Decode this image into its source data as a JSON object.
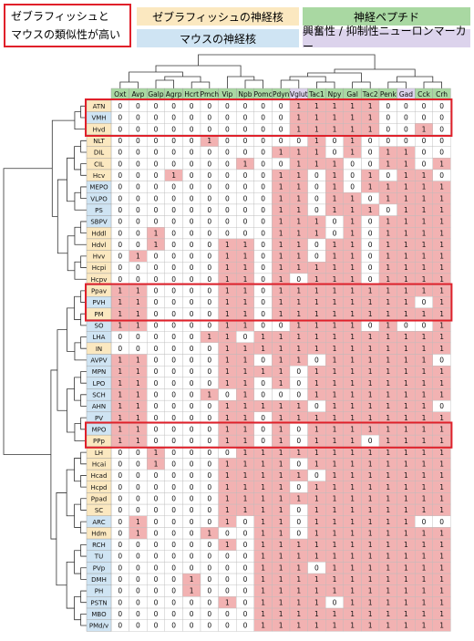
{
  "legend": {
    "similarity_line1": "ゼブラフィッシュと",
    "similarity_line2": "マウスの類似性が高い",
    "zebrafish_nuclei": "ゼブラフィッシュの神経核",
    "mouse_nuclei": "マウスの神経核",
    "neuropeptides": "神経ペプチド",
    "excitatory_inhibitory": "興奮性 / 抑制性ニューロンマーカー"
  },
  "colors": {
    "zebrafish": "#fbe8c0",
    "mouse": "#cfe4f3",
    "neuropeptide": "#a9d8a2",
    "ei_marker": "#dcd3ec",
    "positive_cell": "#f2b2b2",
    "highlight": "#e0202a"
  },
  "columns": [
    {
      "name": "Oxt",
      "group": "neuropeptide"
    },
    {
      "name": "Avp",
      "group": "neuropeptide"
    },
    {
      "name": "Galp",
      "group": "neuropeptide"
    },
    {
      "name": "Agrp",
      "group": "neuropeptide"
    },
    {
      "name": "Hcrt",
      "group": "neuropeptide"
    },
    {
      "name": "Pmch",
      "group": "neuropeptide"
    },
    {
      "name": "Vip",
      "group": "neuropeptide"
    },
    {
      "name": "Npb",
      "group": "neuropeptide"
    },
    {
      "name": "Pomc",
      "group": "neuropeptide"
    },
    {
      "name": "Pdyn",
      "group": "neuropeptide"
    },
    {
      "name": "Vglut",
      "group": "ei_marker"
    },
    {
      "name": "Tac1",
      "group": "neuropeptide"
    },
    {
      "name": "Npy",
      "group": "neuropeptide"
    },
    {
      "name": "Gal",
      "group": "neuropeptide"
    },
    {
      "name": "Tac2",
      "group": "neuropeptide"
    },
    {
      "name": "Penk",
      "group": "neuropeptide"
    },
    {
      "name": "Gad",
      "group": "ei_marker"
    },
    {
      "name": "Cck",
      "group": "neuropeptide"
    },
    {
      "name": "Crh",
      "group": "neuropeptide"
    }
  ],
  "rows": [
    {
      "name": "ATN",
      "species": "zebrafish",
      "v": "0000000000111110000"
    },
    {
      "name": "VMH",
      "species": "mouse",
      "v": "0000000000111110000"
    },
    {
      "name": "Hvd",
      "species": "zebrafish",
      "v": "0000000000111110010"
    },
    {
      "name": "NLT",
      "species": "zebrafish",
      "v": "0000010000010100000"
    },
    {
      "name": "DIL",
      "species": "zebrafish",
      "v": "0000000001110101100"
    },
    {
      "name": "CIL",
      "species": "zebrafish",
      "v": "0000000100111001101"
    },
    {
      "name": "Hcv",
      "species": "zebrafish",
      "v": "0001000001101010110"
    },
    {
      "name": "MEPO",
      "species": "mouse",
      "v": "0000000001101011111"
    },
    {
      "name": "VLPO",
      "species": "mouse",
      "v": "0000000001101101111"
    },
    {
      "name": "PS",
      "species": "mouse",
      "v": "0000000001101110111"
    },
    {
      "name": "SBPV",
      "species": "mouse",
      "v": "0000000001110101111"
    },
    {
      "name": "Hddl",
      "species": "zebrafish",
      "v": "0010000001110101111"
    },
    {
      "name": "Hdvl",
      "species": "zebrafish",
      "v": "0010001101101101111"
    },
    {
      "name": "Hvv",
      "species": "zebrafish",
      "v": "0100001101101101111"
    },
    {
      "name": "Hcpi",
      "species": "zebrafish",
      "v": "0000001101111101111"
    },
    {
      "name": "Hcpv",
      "species": "zebrafish",
      "v": "0000001101011101111"
    },
    {
      "name": "Ppav",
      "species": "zebrafish",
      "v": "1100001101111111111"
    },
    {
      "name": "PVH",
      "species": "mouse",
      "v": "1100001101111111101"
    },
    {
      "name": "PM",
      "species": "zebrafish",
      "v": "1100001101111111111"
    },
    {
      "name": "SO",
      "species": "mouse",
      "v": "1100001100111101001"
    },
    {
      "name": "LHA",
      "species": "mouse",
      "v": "0000011011111111111"
    },
    {
      "name": "IN",
      "species": "zebrafish",
      "v": "0000001111111111111"
    },
    {
      "name": "AVPV",
      "species": "mouse",
      "v": "1100001101101111110"
    },
    {
      "name": "MPN",
      "species": "mouse",
      "v": "1100001111011111111"
    },
    {
      "name": "LPO",
      "species": "mouse",
      "v": "1100001101011111111"
    },
    {
      "name": "SCH",
      "species": "mouse",
      "v": "1100010100011111111"
    },
    {
      "name": "AHN",
      "species": "mouse",
      "v": "1100001111101111110"
    },
    {
      "name": "PV",
      "species": "mouse",
      "v": "1100001101111111111"
    },
    {
      "name": "MPO",
      "species": "mouse",
      "v": "1100001101011111111"
    },
    {
      "name": "PPp",
      "species": "zebrafish",
      "v": "1100001101011101111"
    },
    {
      "name": "LH",
      "species": "zebrafish",
      "v": "0010000111111111111"
    },
    {
      "name": "Hcai",
      "species": "zebrafish",
      "v": "0010001111011111111"
    },
    {
      "name": "Hcad",
      "species": "zebrafish",
      "v": "0000001111101111111"
    },
    {
      "name": "Hcpd",
      "species": "zebrafish",
      "v": "0000001111011111111"
    },
    {
      "name": "Ppad",
      "species": "zebrafish",
      "v": "0000001111111111111"
    },
    {
      "name": "SC",
      "species": "zebrafish",
      "v": "0000001111011111111"
    },
    {
      "name": "ARC",
      "species": "mouse",
      "v": "0100001011011111100"
    },
    {
      "name": "Hdm",
      "species": "zebrafish",
      "v": "0100010011011111111"
    },
    {
      "name": "RCH",
      "species": "mouse",
      "v": "0000001011111111111"
    },
    {
      "name": "TU",
      "species": "mouse",
      "v": "0000000011111111111"
    },
    {
      "name": "PVp",
      "species": "mouse",
      "v": "0000000011101111111"
    },
    {
      "name": "DMH",
      "species": "mouse",
      "v": "0000100011111111111"
    },
    {
      "name": "PH",
      "species": "mouse",
      "v": "0000100011111111111"
    },
    {
      "name": "PSTN",
      "species": "mouse",
      "v": "0000001011110111111"
    },
    {
      "name": "MBO",
      "species": "mouse",
      "v": "0000000011111111111"
    },
    {
      "name": "PMd/v",
      "species": "mouse",
      "v": "0000000011111111111"
    }
  ],
  "highlight_groups": [
    {
      "rows": [
        "ATN",
        "VMH",
        "Hvd"
      ]
    },
    {
      "rows": [
        "Ppav",
        "PVH",
        "PM"
      ]
    },
    {
      "rows": [
        "MPO",
        "PPp"
      ]
    }
  ]
}
